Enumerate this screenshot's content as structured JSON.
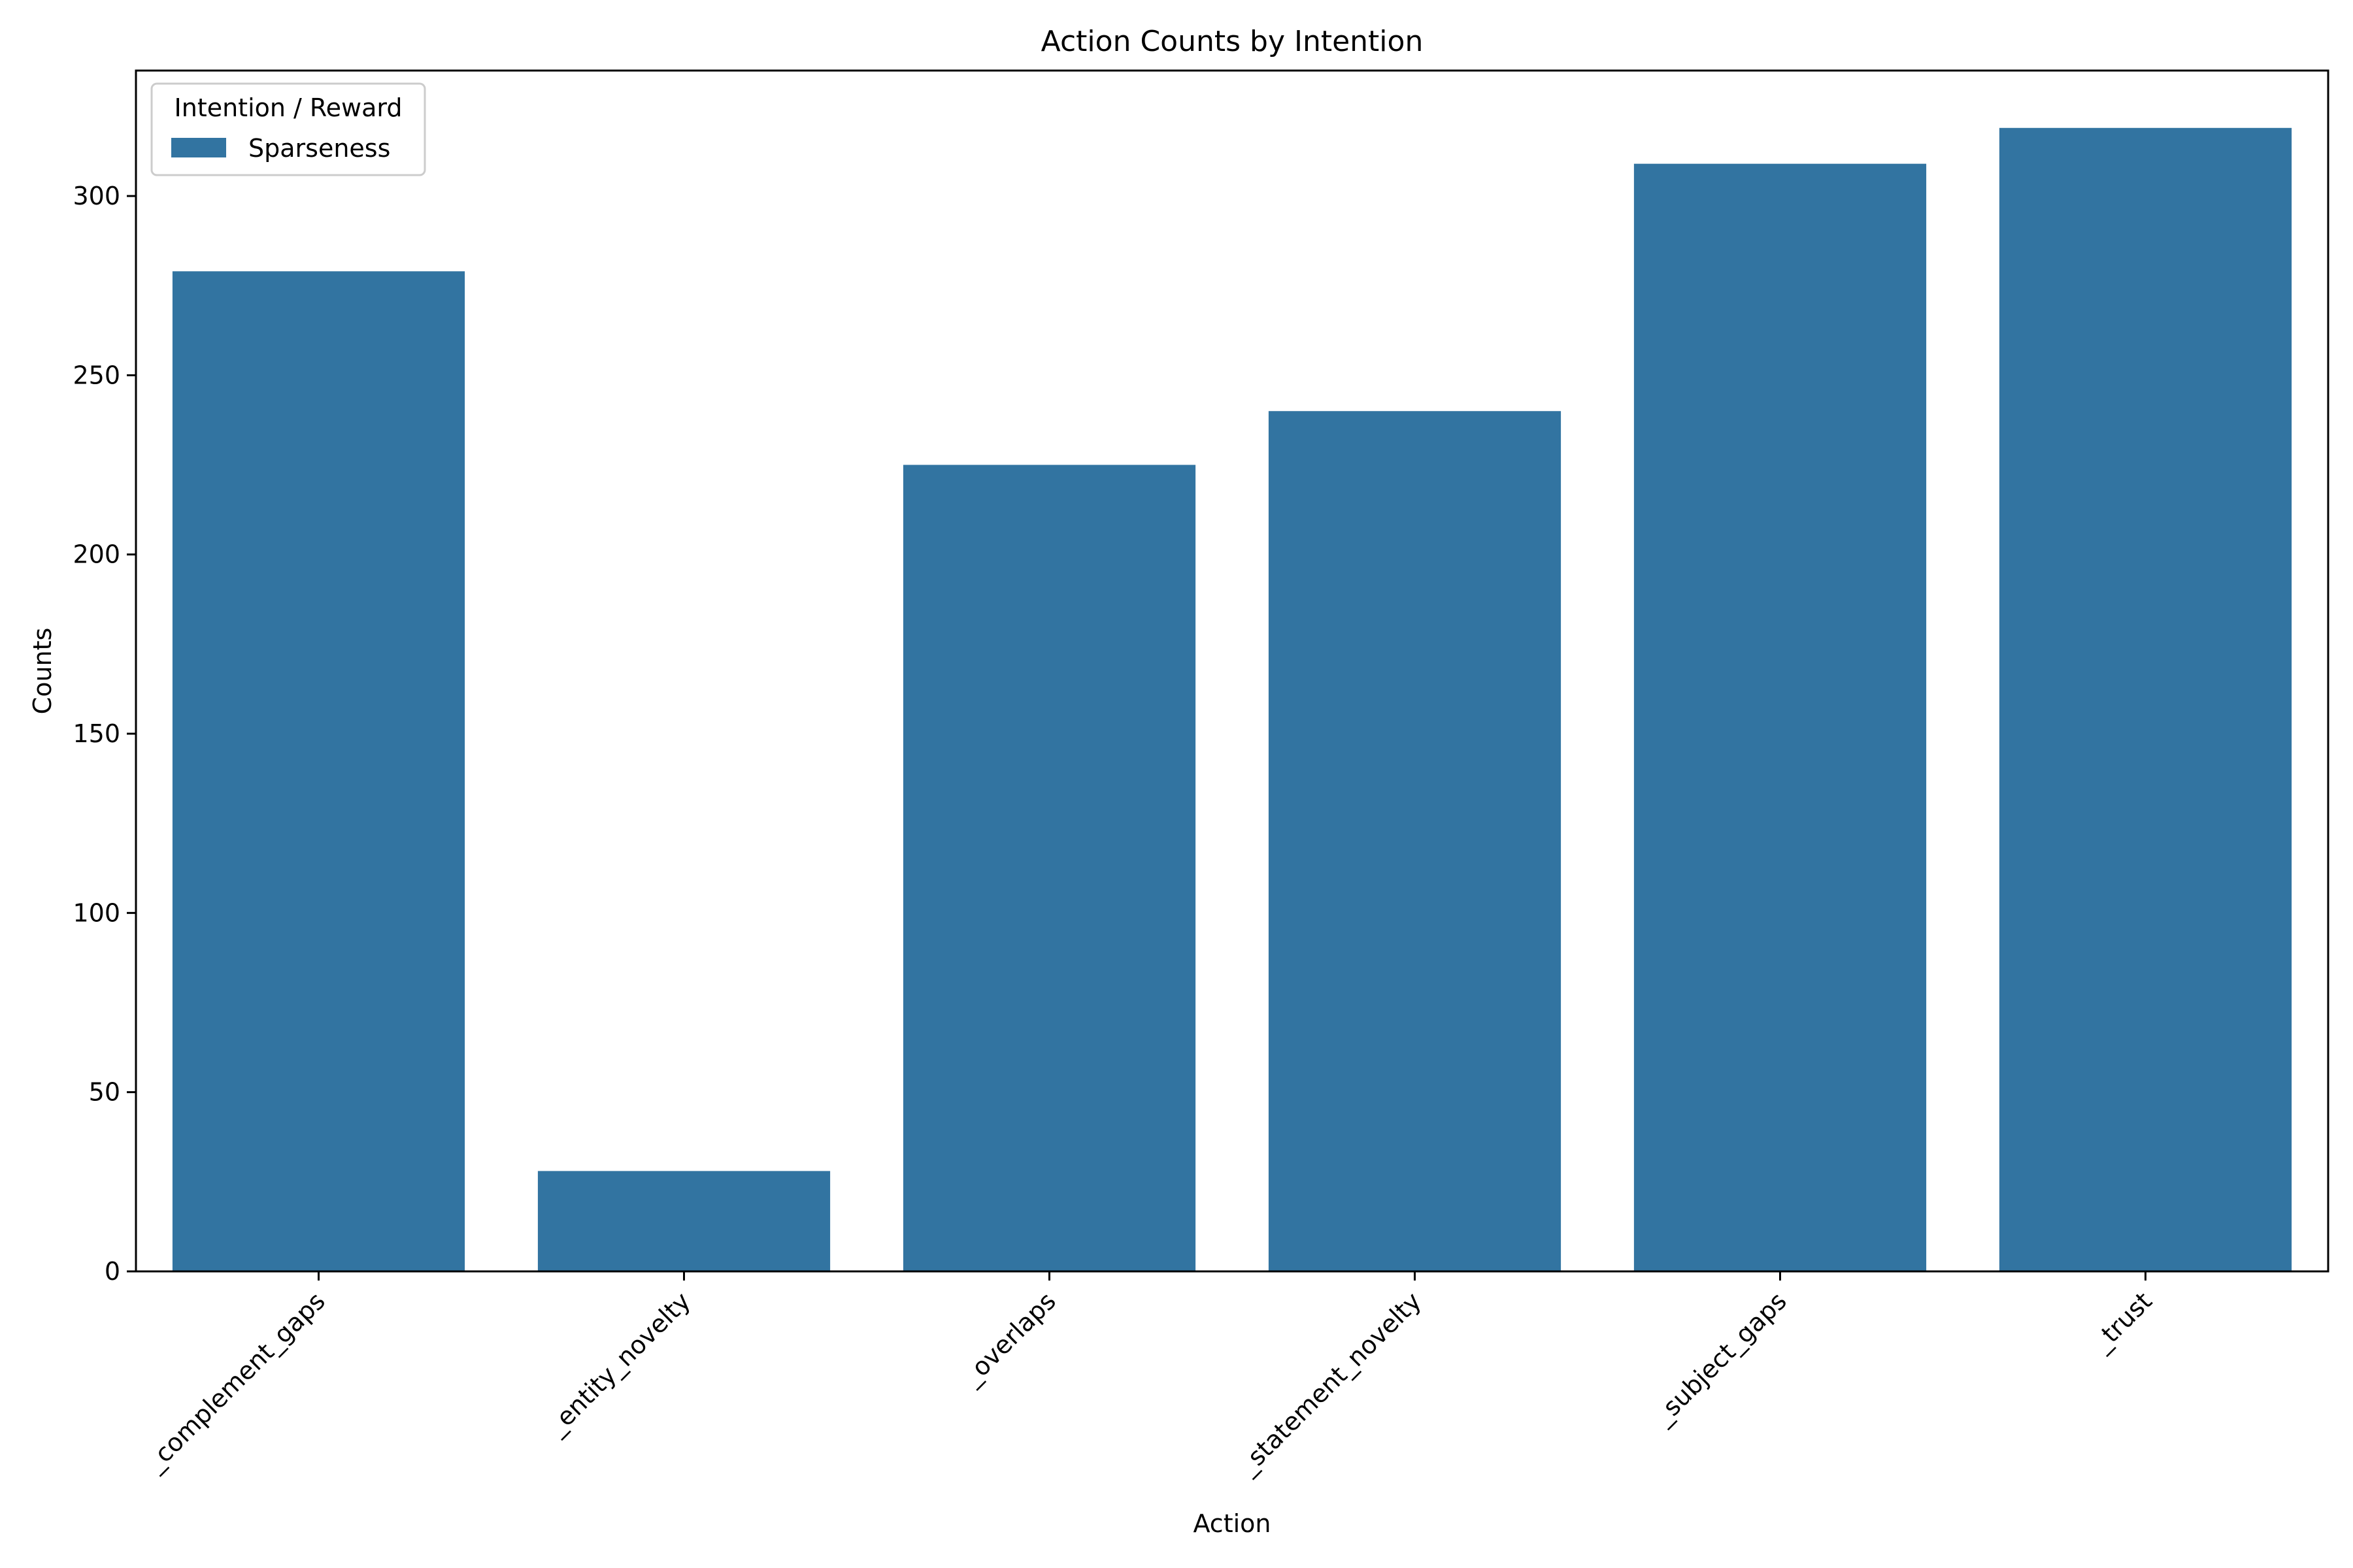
{
  "chart_data": {
    "type": "bar",
    "title": "Action Counts by Intention",
    "xlabel": "Action",
    "ylabel": "Counts",
    "categories": [
      "_complement_gaps",
      "_entity_novelty",
      "_overlaps",
      "_statement_novelty",
      "_subject_gaps",
      "_trust"
    ],
    "series": [
      {
        "name": "Sparseness",
        "values": [
          279,
          28,
          225,
          240,
          309,
          319
        ],
        "color": "#3274a1"
      }
    ],
    "ylim": [
      0,
      335
    ],
    "yticks": [
      0,
      50,
      100,
      150,
      200,
      250,
      300
    ],
    "grid": false,
    "legend": {
      "title": "Intention / Reward",
      "placement": "top-left"
    }
  }
}
